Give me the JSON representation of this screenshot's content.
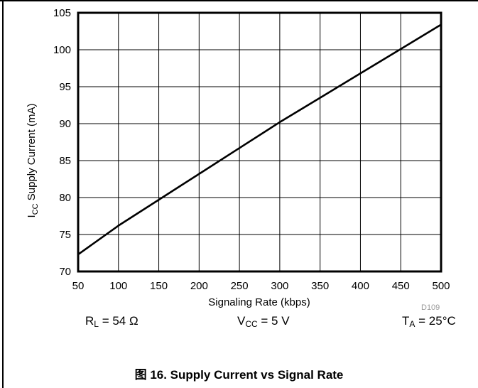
{
  "chart_data": {
    "type": "line",
    "caption": "图 16. Supply Current vs Signal Rate",
    "xlabel": "Signaling Rate (kbps)",
    "ylabel_main": "I",
    "ylabel_sub": "CC",
    "ylabel_rest": " Supply Current (mA)",
    "xlim": [
      50,
      500
    ],
    "ylim": [
      70,
      105
    ],
    "x_ticks": [
      50,
      100,
      150,
      200,
      250,
      300,
      350,
      400,
      450,
      500
    ],
    "y_ticks": [
      70,
      75,
      80,
      85,
      90,
      95,
      100,
      105
    ],
    "grid": true,
    "series": [
      {
        "x": [
          50,
          100,
          150,
          200,
          250,
          300,
          350,
          400,
          450,
          500
        ],
        "y": [
          72.3,
          76.2,
          79.7,
          83.2,
          86.7,
          90.2,
          93.5,
          96.8,
          100.1,
          103.4
        ]
      }
    ]
  },
  "conditions": {
    "rl": {
      "main": "R",
      "sub": "L",
      "rest": " = 54 Ω"
    },
    "vcc": {
      "main": "V",
      "sub": "CC",
      "rest": " = 5 V"
    },
    "ta": {
      "main": "T",
      "sub": "A",
      "rest": " = 25°C"
    }
  },
  "figure_code": "D109"
}
